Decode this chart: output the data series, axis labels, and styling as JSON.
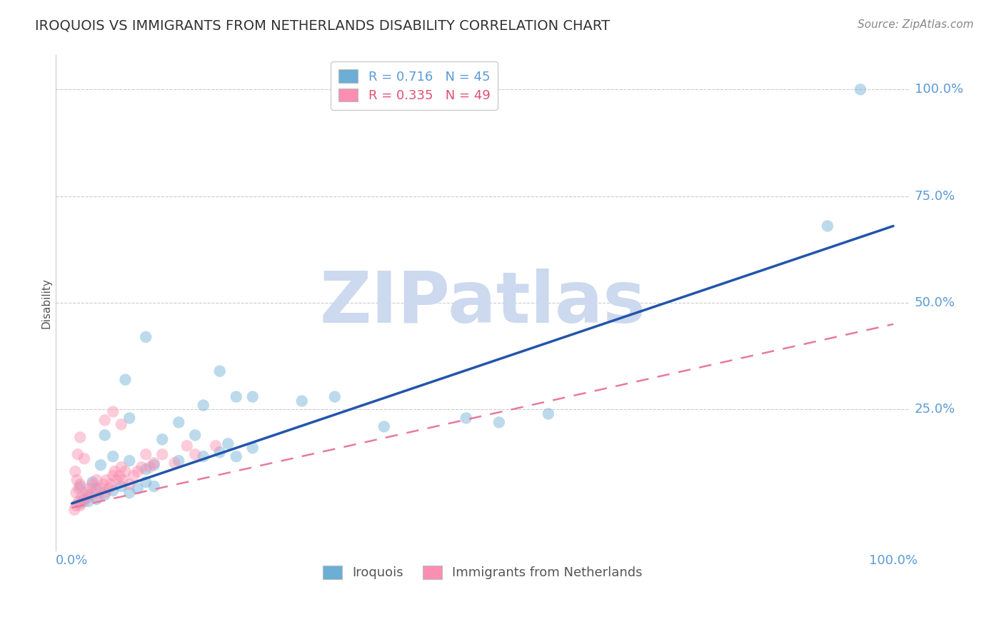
{
  "title": "IROQUOIS VS IMMIGRANTS FROM NETHERLANDS DISABILITY CORRELATION CHART",
  "source": "Source: ZipAtlas.com",
  "ylabel": "Disability",
  "y_tick_labels": [
    "100.0%",
    "75.0%",
    "50.0%",
    "25.0%"
  ],
  "y_tick_values": [
    100.0,
    75.0,
    50.0,
    25.0
  ],
  "blue_R": 0.716,
  "blue_N": 45,
  "pink_R": 0.335,
  "pink_N": 49,
  "blue_label": "Iroquois",
  "pink_label": "Immigrants from Netherlands",
  "blue_color": "#6baed6",
  "pink_color": "#fa8fb1",
  "blue_scatter": [
    [
      1.0,
      3.0
    ],
    [
      1.5,
      4.0
    ],
    [
      1.0,
      7.0
    ],
    [
      2.0,
      3.5
    ],
    [
      2.0,
      5.0
    ],
    [
      2.5,
      8.0
    ],
    [
      3.0,
      4.0
    ],
    [
      4.0,
      5.0
    ],
    [
      3.0,
      6.5
    ],
    [
      5.0,
      6.0
    ],
    [
      6.0,
      7.0
    ],
    [
      7.0,
      5.5
    ],
    [
      8.0,
      6.5
    ],
    [
      9.0,
      8.0
    ],
    [
      10.0,
      7.0
    ],
    [
      3.5,
      12.0
    ],
    [
      5.0,
      14.0
    ],
    [
      7.0,
      13.0
    ],
    [
      9.0,
      11.0
    ],
    [
      10.0,
      12.0
    ],
    [
      13.0,
      13.0
    ],
    [
      16.0,
      14.0
    ],
    [
      18.0,
      15.0
    ],
    [
      20.0,
      14.0
    ],
    [
      22.0,
      16.0
    ],
    [
      4.0,
      19.0
    ],
    [
      7.0,
      23.0
    ],
    [
      6.5,
      32.0
    ],
    [
      9.0,
      42.0
    ],
    [
      13.0,
      22.0
    ],
    [
      16.0,
      26.0
    ],
    [
      18.0,
      34.0
    ],
    [
      20.0,
      28.0
    ],
    [
      22.0,
      28.0
    ],
    [
      28.0,
      27.0
    ],
    [
      32.0,
      28.0
    ],
    [
      38.0,
      21.0
    ],
    [
      48.0,
      23.0
    ],
    [
      52.0,
      22.0
    ],
    [
      58.0,
      24.0
    ],
    [
      11.0,
      18.0
    ],
    [
      15.0,
      19.0
    ],
    [
      19.0,
      17.0
    ],
    [
      92.0,
      68.0
    ],
    [
      96.0,
      100.0
    ]
  ],
  "pink_scatter": [
    [
      0.3,
      1.5
    ],
    [
      0.5,
      2.5
    ],
    [
      0.8,
      3.5
    ],
    [
      1.0,
      2.5
    ],
    [
      1.2,
      4.5
    ],
    [
      0.5,
      5.5
    ],
    [
      0.8,
      6.5
    ],
    [
      1.0,
      7.5
    ],
    [
      1.5,
      3.5
    ],
    [
      1.8,
      5.5
    ],
    [
      2.0,
      4.5
    ],
    [
      2.2,
      6.5
    ],
    [
      2.5,
      7.5
    ],
    [
      2.8,
      5.5
    ],
    [
      3.0,
      8.5
    ],
    [
      3.2,
      4.5
    ],
    [
      3.5,
      6.5
    ],
    [
      3.8,
      7.5
    ],
    [
      4.0,
      5.5
    ],
    [
      4.2,
      8.5
    ],
    [
      4.5,
      6.5
    ],
    [
      4.8,
      7.5
    ],
    [
      5.0,
      9.5
    ],
    [
      5.2,
      10.5
    ],
    [
      5.5,
      8.5
    ],
    [
      5.8,
      9.5
    ],
    [
      6.0,
      11.5
    ],
    [
      6.2,
      8.5
    ],
    [
      6.5,
      10.5
    ],
    [
      7.0,
      7.5
    ],
    [
      7.5,
      9.5
    ],
    [
      8.0,
      10.5
    ],
    [
      8.5,
      11.5
    ],
    [
      9.0,
      14.5
    ],
    [
      9.5,
      11.5
    ],
    [
      10.0,
      12.5
    ],
    [
      11.0,
      14.5
    ],
    [
      12.5,
      12.5
    ],
    [
      14.0,
      16.5
    ],
    [
      15.0,
      14.5
    ],
    [
      4.0,
      22.5
    ],
    [
      5.0,
      24.5
    ],
    [
      6.0,
      21.5
    ],
    [
      17.5,
      16.5
    ],
    [
      0.4,
      10.5
    ],
    [
      0.6,
      8.5
    ],
    [
      1.0,
      18.5
    ],
    [
      0.7,
      14.5
    ],
    [
      1.5,
      13.5
    ]
  ],
  "blue_line_x": [
    0.0,
    100.0
  ],
  "blue_line_y": [
    3.0,
    68.0
  ],
  "pink_line_x": [
    0.0,
    100.0
  ],
  "pink_line_y": [
    2.0,
    45.0
  ],
  "xlim": [
    -2,
    102
  ],
  "ylim": [
    -8,
    108
  ],
  "background_color": "#ffffff",
  "watermark_text": "ZIPatlas",
  "watermark_color": "#ccd9ee",
  "title_fontsize": 14,
  "source_fontsize": 11,
  "tick_fontsize": 13,
  "ylabel_fontsize": 11
}
